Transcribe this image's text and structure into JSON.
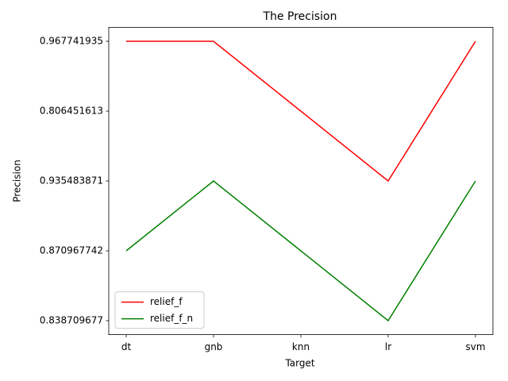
{
  "chart_data": {
    "type": "line",
    "title": "The Precision",
    "xlabel": "Target",
    "ylabel": "Precision",
    "categories": [
      "dt",
      "gnb",
      "knn",
      "lr",
      "svm"
    ],
    "ycategories": [
      0.838709677,
      0.870967742,
      0.935483871,
      0.806451613,
      0.967741935
    ],
    "series": [
      {
        "name": "relief_f",
        "color": "#ff0000",
        "values": [
          0.967741935,
          0.967741935,
          0.806451613,
          0.935483871,
          0.967741935
        ]
      },
      {
        "name": "relief_f_n",
        "color": "#008000",
        "values": [
          0.870967742,
          0.935483871,
          0.870967742,
          0.838709677,
          0.935483871
        ]
      }
    ],
    "legend": "lower left"
  }
}
